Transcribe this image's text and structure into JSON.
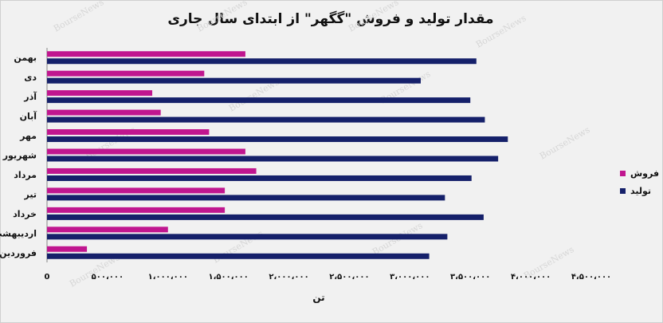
{
  "chart_data": {
    "type": "bar",
    "orientation": "horizontal",
    "title": "مقدار تولید و فروش \"گگهر\" از ابتدای سال جاری",
    "xlabel": "تن",
    "ylabel": "",
    "xlim": [
      0,
      4500000
    ],
    "xticks": [
      0,
      500000,
      1000000,
      1500000,
      2000000,
      2500000,
      3000000,
      3500000,
      4000000,
      4500000
    ],
    "xtick_labels": [
      "0",
      "۵۰۰،۰۰۰",
      "۱،۰۰۰،۰۰۰",
      "۱،۵۰۰،۰۰۰",
      "۲،۰۰۰،۰۰۰",
      "۲،۵۰۰،۰۰۰",
      "۳،۰۰۰،۰۰۰",
      "۳،۵۰۰،۰۰۰",
      "۴،۰۰۰،۰۰۰",
      "۴،۵۰۰،۰۰۰"
    ],
    "categories": [
      "بهمن",
      "دی",
      "آذر",
      "آبان",
      "مهر",
      "شهریور",
      "مرداد",
      "تیر",
      "خرداد",
      "اردیبهشت",
      "فروردین"
    ],
    "series": [
      {
        "name": "فروش",
        "color": "#c0168f",
        "values": [
          1640000,
          1300000,
          870000,
          940000,
          1340000,
          1640000,
          1730000,
          1470000,
          1470000,
          1000000,
          330000
        ]
      },
      {
        "name": "تولید",
        "color": "#15206a",
        "values": [
          3550000,
          3090000,
          3500000,
          3620000,
          3810000,
          3730000,
          3510000,
          3290000,
          3610000,
          3310000,
          3160000
        ]
      }
    ],
    "grid": false,
    "legend_position": "right"
  },
  "watermark": "BourseNews"
}
